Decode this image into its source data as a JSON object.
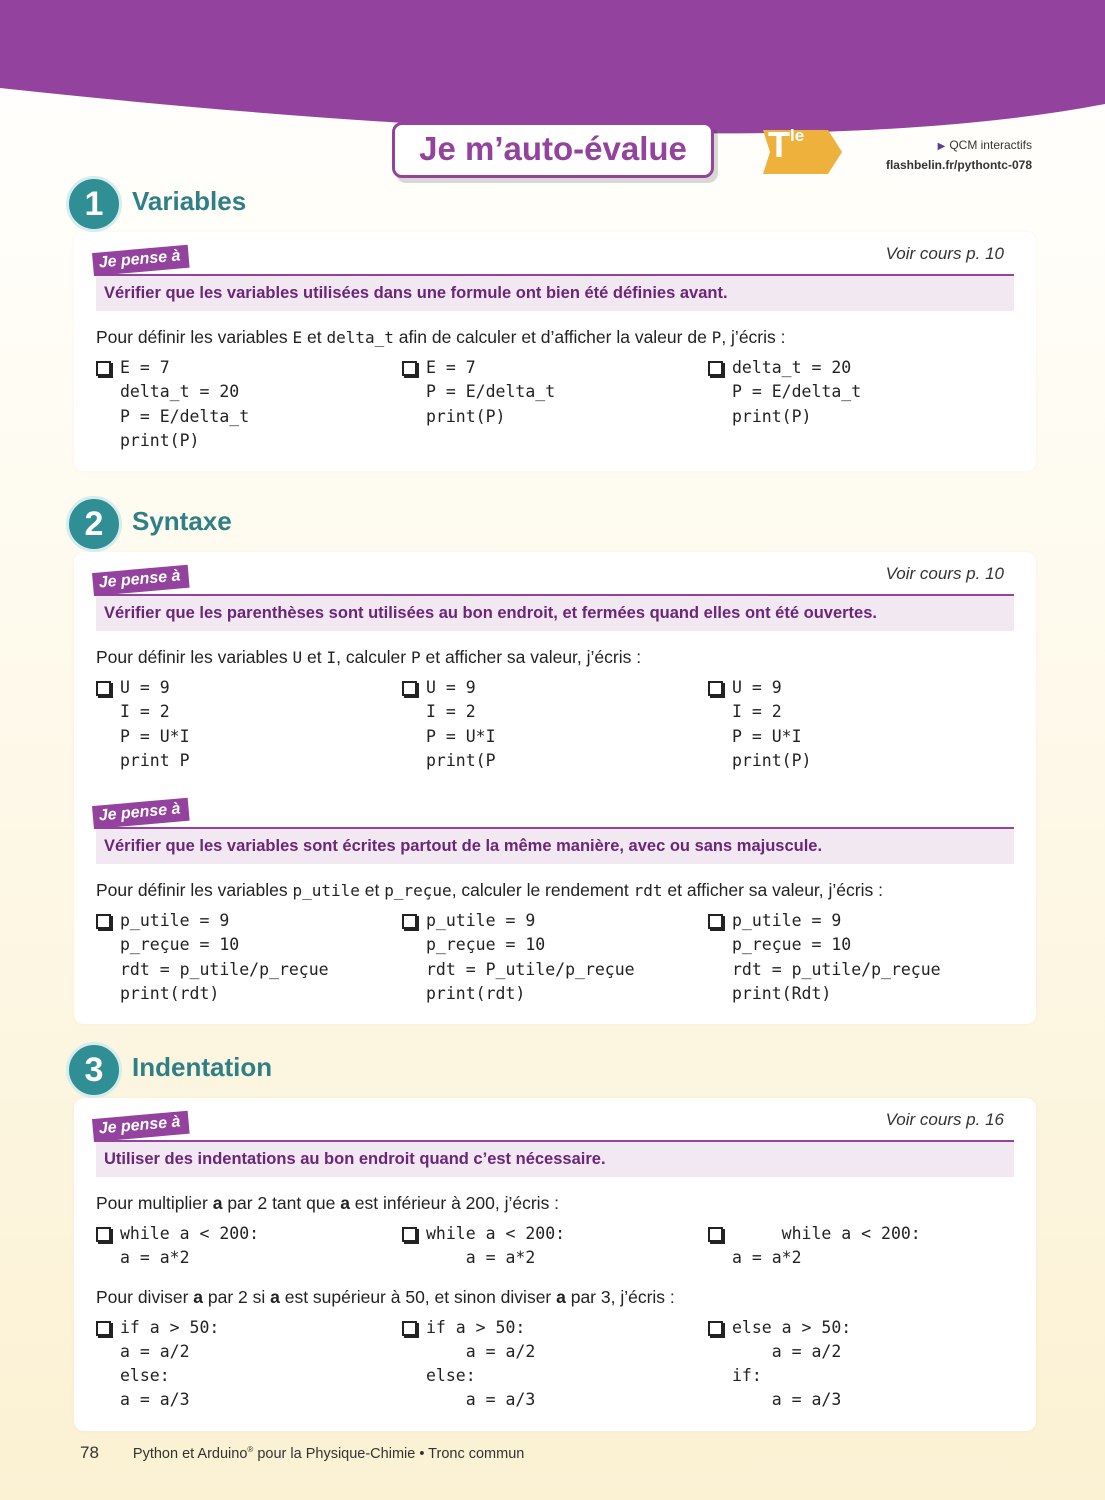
{
  "header": {
    "title": "Je m’auto-évalue",
    "level": {
      "letter": "T",
      "sup": "le"
    },
    "link_label": "QCM interactifs",
    "link_url": "flashbelin.fr/pythontc-078"
  },
  "sections": [
    {
      "number": "1",
      "title": "Variables",
      "blocks": [
        {
          "tag": "Je pense à",
          "ref": "Voir cours p. 10",
          "tip": "Vérifier que les variables utilisées dans une formule ont bien été définies avant.",
          "questions": [
            {
              "prompt": [
                "Pour définir les variables ",
                {
                  "code": "E"
                },
                " et ",
                {
                  "code": "delta_t"
                },
                " afin de calculer et d’afficher la valeur de ",
                {
                  "code": "P"
                },
                ", j’écris :"
              ],
              "options": [
                {
                  "lines": [
                    "E = 7",
                    "delta_t = 20",
                    "P = E/delta_t",
                    "print(P)"
                  ]
                },
                {
                  "lines": [
                    "E = 7",
                    "P = E/delta_t",
                    "print(P)"
                  ]
                },
                {
                  "lines": [
                    "delta_t = 20",
                    "P = E/delta_t",
                    "print(P)"
                  ]
                }
              ]
            }
          ]
        }
      ]
    },
    {
      "number": "2",
      "title": "Syntaxe",
      "blocks": [
        {
          "tag": "Je pense à",
          "ref": "Voir cours p. 10",
          "tip": "Vérifier que les parenthèses sont utilisées au bon endroit, et fermées quand elles ont été ouvertes.",
          "questions": [
            {
              "prompt": [
                "Pour définir les variables ",
                {
                  "code": "U"
                },
                " et ",
                {
                  "code": "I"
                },
                ", calculer ",
                {
                  "code": "P"
                },
                " et afficher sa valeur, j’écris :"
              ],
              "options": [
                {
                  "lines": [
                    "U = 9",
                    "I = 2",
                    "P = U*I",
                    "print P"
                  ]
                },
                {
                  "lines": [
                    "U = 9",
                    "I = 2",
                    "P = U*I",
                    "print(P"
                  ]
                },
                {
                  "lines": [
                    "U = 9",
                    "I = 2",
                    "P = U*I",
                    "print(P)"
                  ]
                }
              ]
            }
          ]
        },
        {
          "tag": "Je pense à",
          "tip": "Vérifier que les variables sont écrites partout de la même manière, avec ou sans majuscule.",
          "questions": [
            {
              "prompt": [
                "Pour définir les variables ",
                {
                  "code": "p_utile"
                },
                " et ",
                {
                  "code": "p_reçue"
                },
                ", calculer le rendement ",
                {
                  "code": "rdt"
                },
                " et afficher sa valeur, j’écris :"
              ],
              "options": [
                {
                  "lines": [
                    "p_utile = 9",
                    "p_reçue = 10",
                    "rdt = p_utile/p_reçue",
                    "print(rdt)"
                  ]
                },
                {
                  "lines": [
                    "p_utile = 9",
                    "p_reçue = 10",
                    "rdt = P_utile/p_reçue",
                    "print(rdt)"
                  ]
                },
                {
                  "lines": [
                    "p_utile = 9",
                    "p_reçue = 10",
                    "rdt = p_utile/p_reçue",
                    "print(Rdt)"
                  ]
                }
              ]
            }
          ]
        }
      ]
    },
    {
      "number": "3",
      "title": "Indentation",
      "blocks": [
        {
          "tag": "Je pense à",
          "ref": "Voir cours p. 16",
          "tip": "Utiliser des indentations au bon endroit quand c’est nécessaire.",
          "questions": [
            {
              "prompt": [
                "Pour multiplier ",
                {
                  "em": "a"
                },
                " par 2 tant que ",
                {
                  "em": "a"
                },
                " est inférieur à 200, j’écris :"
              ],
              "options": [
                {
                  "lines": [
                    "while a < 200:",
                    "a = a*2"
                  ]
                },
                {
                  "lines": [
                    "while a < 200:",
                    "    a = a*2"
                  ]
                },
                {
                  "lines": [
                    "     while a < 200:",
                    "a = a*2"
                  ]
                }
              ]
            },
            {
              "prompt": [
                "Pour diviser ",
                {
                  "em": "a"
                },
                " par 2 si ",
                {
                  "em": "a"
                },
                " est supérieur à 50, et sinon diviser ",
                {
                  "em": "a"
                },
                " par 3, j’écris :"
              ],
              "options": [
                {
                  "lines": [
                    "if a > 50:",
                    "a = a/2",
                    "else:",
                    "a = a/3"
                  ]
                },
                {
                  "lines": [
                    "if a > 50:",
                    "    a = a/2",
                    "else:",
                    "    a = a/3"
                  ]
                },
                {
                  "lines": [
                    "else a > 50:",
                    "    a = a/2",
                    "if:",
                    "    a = a/3"
                  ]
                }
              ]
            }
          ]
        }
      ]
    }
  ],
  "footer": {
    "page": "78",
    "text": [
      "Python et Arduino",
      "®",
      " pour la Physique-Chimie • Tronc commun"
    ]
  }
}
